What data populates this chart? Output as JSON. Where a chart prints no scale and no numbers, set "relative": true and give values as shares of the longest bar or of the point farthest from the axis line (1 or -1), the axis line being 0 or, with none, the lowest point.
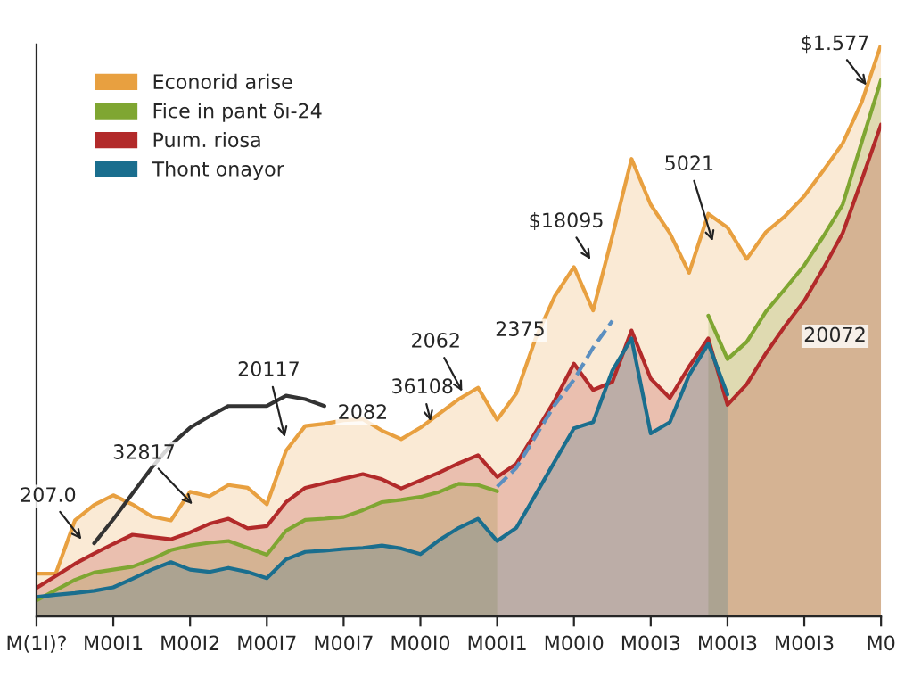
{
  "chart_data": {
    "type": "area",
    "relative": true,
    "categories": [
      "M(1I)?",
      null,
      null,
      null,
      "M00I1",
      null,
      null,
      null,
      "M00I2",
      null,
      null,
      null,
      "M00I7",
      null,
      null,
      null,
      "M00I7",
      null,
      null,
      null,
      "M00I0",
      null,
      null,
      null,
      "M00I1",
      null,
      null,
      null,
      "M00I0",
      null,
      null,
      null,
      "M00I3",
      null,
      null,
      null,
      "M00I3",
      null,
      null,
      null,
      "M00I3",
      null,
      null,
      null,
      "M0"
    ],
    "series": [
      {
        "name": "Econorid arise",
        "color": "#e8a040",
        "values": [
          0.075,
          0.075,
          0.168,
          0.195,
          0.212,
          0.196,
          0.175,
          0.168,
          0.218,
          0.21,
          0.23,
          0.225,
          0.196,
          0.29,
          0.333,
          0.337,
          0.343,
          0.345,
          0.325,
          0.31,
          0.33,
          0.355,
          0.38,
          0.4,
          0.344,
          0.39,
          0.486,
          0.56,
          0.611,
          0.535,
          0.665,
          0.8,
          0.72,
          0.67,
          0.601,
          0.704,
          0.68,
          0.625,
          0.672,
          0.7,
          0.735,
          0.78,
          0.827,
          0.9,
          1.0
        ]
      },
      {
        "name": "Fice in pant δı-24",
        "color": "#7fa632",
        "values": [
          0.028,
          0.046,
          0.064,
          0.077,
          0.082,
          0.087,
          0.1,
          0.116,
          0.124,
          0.129,
          0.132,
          0.12,
          0.108,
          0.15,
          0.169,
          0.171,
          0.174,
          0.186,
          0.2,
          0.204,
          0.209,
          0.218,
          0.232,
          0.23,
          0.219,
          null,
          null,
          null,
          null,
          null,
          null,
          null,
          null,
          null,
          null,
          0.526,
          0.45,
          0.48,
          0.533,
          0.573,
          0.614,
          0.665,
          0.72,
          0.83,
          0.938
        ]
      },
      {
        "name": "Puım. riosa",
        "color": "#b22a2a",
        "values": [
          0.05,
          0.071,
          0.092,
          0.11,
          0.127,
          0.143,
          0.139,
          0.135,
          0.147,
          0.162,
          0.171,
          0.154,
          0.158,
          0.2,
          0.225,
          0.233,
          0.241,
          0.249,
          0.24,
          0.224,
          0.238,
          0.252,
          0.268,
          0.282,
          0.244,
          0.267,
          0.322,
          0.378,
          0.442,
          0.396,
          0.41,
          0.5,
          0.416,
          0.382,
          0.437,
          0.486,
          0.37,
          0.406,
          0.46,
          0.508,
          0.552,
          0.609,
          0.67,
          0.764,
          0.86
        ]
      },
      {
        "name": "Thont onayor",
        "color": "#1a6e8e",
        "values": [
          0.034,
          0.038,
          0.041,
          0.045,
          0.051,
          0.066,
          0.082,
          0.095,
          0.082,
          0.078,
          0.085,
          0.078,
          0.067,
          0.1,
          0.113,
          0.115,
          0.118,
          0.12,
          0.124,
          0.119,
          0.109,
          0.134,
          0.155,
          0.171,
          0.132,
          0.155,
          0.213,
          0.271,
          0.329,
          0.34,
          0.43,
          0.486,
          0.32,
          0.34,
          0.422,
          0.477,
          0.388,
          null,
          null,
          null,
          null,
          null,
          null,
          null,
          null
        ]
      },
      {
        "color": "#333333",
        "type": "line",
        "values": [
          null,
          null,
          null,
          0.128,
          0.17,
          0.215,
          0.26,
          0.3,
          0.33,
          0.35,
          0.368,
          0.368,
          0.368,
          0.386,
          0.38,
          0.368,
          null,
          null,
          null,
          null,
          null,
          null,
          null,
          null,
          null,
          null,
          null,
          null,
          null,
          null,
          null,
          null,
          null,
          null,
          null,
          null,
          null,
          null,
          null,
          null,
          null,
          null,
          null,
          null,
          null
        ]
      },
      {
        "color": "#5b8fc0",
        "type": "line",
        "line_style": "dashed",
        "values": [
          null,
          null,
          null,
          null,
          null,
          null,
          null,
          null,
          null,
          null,
          null,
          null,
          null,
          null,
          null,
          null,
          null,
          null,
          null,
          null,
          null,
          null,
          null,
          null,
          0.227,
          0.26,
          0.315,
          0.37,
          0.414,
          0.47,
          0.517,
          null,
          null,
          null,
          null,
          null,
          null,
          null,
          null,
          null,
          null,
          null,
          null,
          null,
          null
        ]
      }
    ],
    "annotations": [
      "207.0",
      "32817",
      "20117",
      "2082",
      "36108",
      "2062",
      "2375",
      "$18095",
      "5021",
      "$1.577",
      "20072"
    ],
    "legend": "top left",
    "grid": false
  }
}
